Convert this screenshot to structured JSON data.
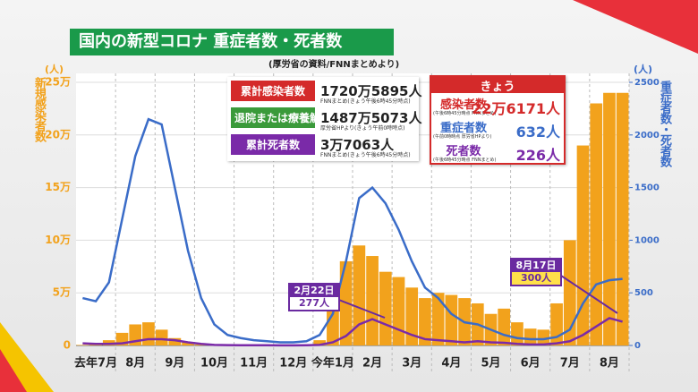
{
  "chart_data": {
    "type": "bar",
    "title": "国内の新型コロナ 重症者数・死者数",
    "subtitle": "(厚労省の資料/FNNまとめより)",
    "y_unit": "(人)",
    "y_label": "新規感染者数",
    "y2_unit": "(人)",
    "y2_label": "重症者数・死者数",
    "categories": [
      null,
      "去年7月",
      null,
      null,
      "8月",
      null,
      null,
      "9月",
      null,
      null,
      "10月",
      null,
      null,
      "11月",
      null,
      null,
      "12月",
      null,
      null,
      "今年1月",
      null,
      null,
      "2月",
      null,
      null,
      "3月",
      null,
      null,
      "4月",
      null,
      null,
      "5月",
      null,
      null,
      "6月",
      null,
      null,
      "7月",
      null,
      null,
      "8月",
      null
    ],
    "series": [
      {
        "type": "bar",
        "color": "#f2a21c",
        "values": [
          500,
          1500,
          5000,
          12000,
          20000,
          22000,
          15000,
          7000,
          3000,
          1000,
          500,
          300,
          200,
          150,
          100,
          150,
          200,
          500,
          5000,
          40000,
          80000,
          95000,
          85000,
          70000,
          65000,
          55000,
          45000,
          50000,
          48000,
          45000,
          40000,
          30000,
          35000,
          22000,
          16000,
          15000,
          40000,
          100000,
          190000,
          230000,
          240000,
          240000
        ]
      },
      {
        "type": "line",
        "axis": "y2",
        "color": "#3a6cc8",
        "values": [
          450,
          420,
          600,
          1200,
          1800,
          2150,
          2100,
          1500,
          900,
          450,
          200,
          100,
          70,
          50,
          40,
          30,
          30,
          40,
          100,
          300,
          800,
          1400,
          1500,
          1350,
          1100,
          800,
          550,
          450,
          300,
          220,
          200,
          150,
          100,
          70,
          60,
          60,
          80,
          150,
          400,
          580,
          620,
          632
        ]
      },
      {
        "type": "line",
        "axis": "y2",
        "color": "#7a2aa8",
        "values": [
          20,
          15,
          15,
          20,
          40,
          60,
          60,
          50,
          30,
          15,
          5,
          3,
          2,
          2,
          2,
          1,
          1,
          2,
          5,
          30,
          90,
          200,
          250,
          200,
          150,
          100,
          60,
          50,
          40,
          30,
          40,
          30,
          25,
          15,
          10,
          10,
          20,
          40,
          100,
          180,
          260,
          226
        ]
      }
    ],
    "ylim": [
      0,
      250000
    ],
    "yticks": [
      0,
      {
        "value": 50000,
        "label": "5万"
      },
      {
        "value": 100000,
        "label": "10万"
      },
      {
        "value": 150000,
        "label": "15万"
      },
      {
        "value": 200000,
        "label": "20万"
      },
      {
        "value": 250000,
        "label": "25万"
      }
    ],
    "y2lim": [
      0,
      2500
    ],
    "y2ticks": [
      0,
      500,
      1000,
      1500,
      2000,
      2500
    ],
    "annotations": [
      {
        "date": "2月22日",
        "text": "277人"
      },
      {
        "date": "8月17日",
        "text": "300人"
      }
    ],
    "summary": [
      {
        "label": "累計感染者数",
        "value": "1720万5895人",
        "note": "FNNまとめ(きょう午後6時45分時点)",
        "color": "#d42a2a"
      },
      {
        "label": "退院または療養解除",
        "value": "1487万5073人",
        "note": "厚労省HPより(きょう午前0時時点)",
        "color": "#3a9a3a"
      },
      {
        "label": "累計死者数",
        "value": "3万7063人",
        "note": "FNNまとめ(きょう午後6時45分時点)",
        "color": "#7a2aa8"
      }
    ],
    "today": {
      "title": "きょう",
      "rows": [
        {
          "label": "感染者数",
          "note": "(午後6時45分時点 FNNまとめ)",
          "value": "22万6171人",
          "color": "#d42a2a"
        },
        {
          "label": "重症者数",
          "note": "(午前0時時点 厚労省HPより)",
          "value": "632人",
          "color": "#3a6cc8"
        },
        {
          "label": "死者数",
          "note": "(午後6時45分時点 FNNまとめ)",
          "value": "226人",
          "color": "#7a2aa8"
        }
      ]
    }
  }
}
